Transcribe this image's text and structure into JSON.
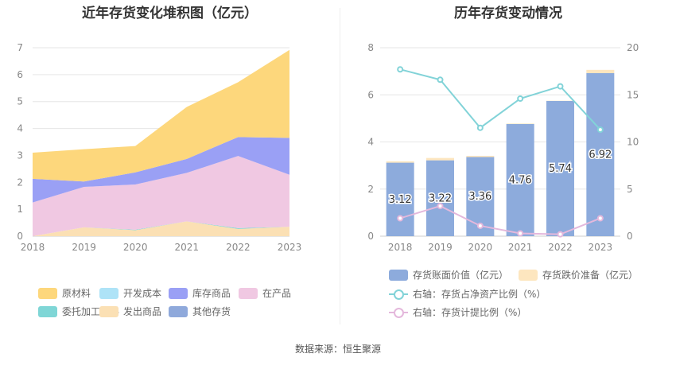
{
  "source_note": "数据来源：恒生聚源",
  "chart_data": [
    {
      "type": "area",
      "stacked": true,
      "title": "近年存货变化堆积图（亿元）",
      "x": [
        "2018",
        "2019",
        "2020",
        "2021",
        "2022",
        "2023"
      ],
      "ylim": [
        0,
        7
      ],
      "yticks": [
        "0",
        "1",
        "2",
        "3",
        "4",
        "5",
        "6",
        "7"
      ],
      "grid": true,
      "legend_position": "bottom",
      "series": [
        {
          "name": "发出商品",
          "color": "#fbe0b4",
          "values": [
            0.0,
            0.33,
            0.22,
            0.55,
            0.27,
            0.35
          ]
        },
        {
          "name": "委托加工材料",
          "color": "#7fd6d6",
          "values": [
            0.0,
            0.0,
            0.02,
            0.0,
            0.03,
            0.0
          ]
        },
        {
          "name": "开发成本",
          "color": "#aee3f7",
          "values": [
            0.0,
            0.0,
            0.0,
            0.0,
            0.0,
            0.0
          ]
        },
        {
          "name": "在产品",
          "color": "#f0c8e2",
          "values": [
            1.25,
            1.5,
            1.68,
            1.8,
            2.68,
            1.93
          ]
        },
        {
          "name": "库存商品",
          "color": "#9aa0f5",
          "values": [
            0.88,
            0.2,
            0.45,
            0.52,
            0.7,
            1.37
          ]
        },
        {
          "name": "其他存货",
          "color": "#8fa9db",
          "values": [
            0.0,
            0.0,
            0.0,
            0.0,
            0.0,
            0.0
          ]
        },
        {
          "name": "原材料",
          "color": "#fdd77c",
          "values": [
            0.97,
            1.2,
            0.98,
            1.93,
            2.04,
            3.27
          ]
        }
      ],
      "legend_order": [
        "原材料",
        "开发成本",
        "库存商品",
        "在产品",
        "委托加工材料",
        "发出商品",
        "其他存货"
      ]
    },
    {
      "type": "bar",
      "title": "历年存货变动情况",
      "categories": [
        "2018",
        "2019",
        "2020",
        "2021",
        "2022",
        "2023"
      ],
      "ylim_left": [
        0,
        8
      ],
      "yticks_left": [
        "0",
        "2",
        "4",
        "6",
        "8"
      ],
      "ylim_right": [
        0,
        20
      ],
      "yticks_right": [
        "0",
        "5",
        "10",
        "15",
        "20"
      ],
      "grid": true,
      "legend_position": "bottom",
      "series": [
        {
          "name": "存货账面价值（亿元）",
          "type": "bar",
          "color": "#8dabdc",
          "values": [
            3.12,
            3.22,
            3.36,
            4.76,
            5.74,
            6.92
          ],
          "labels": [
            "3.12",
            "3.22",
            "3.36",
            "4.76",
            "5.74",
            "6.92"
          ]
        },
        {
          "name": "存货跌价准备（亿元）",
          "type": "bar",
          "color": "#fde6bf",
          "values": [
            0.06,
            0.1,
            0.05,
            0.02,
            0.01,
            0.14
          ]
        },
        {
          "name": "右轴：存货占净资产比例（%）",
          "type": "line",
          "axis": "right",
          "color": "#82d3d8",
          "values": [
            17.7,
            16.6,
            11.5,
            14.6,
            15.9,
            11.3
          ]
        },
        {
          "name": "右轴：存货计提比例（%）",
          "type": "line",
          "axis": "right",
          "color": "#e4b8dc",
          "values": [
            1.9,
            3.2,
            1.1,
            0.3,
            0.2,
            1.9
          ]
        }
      ]
    }
  ]
}
